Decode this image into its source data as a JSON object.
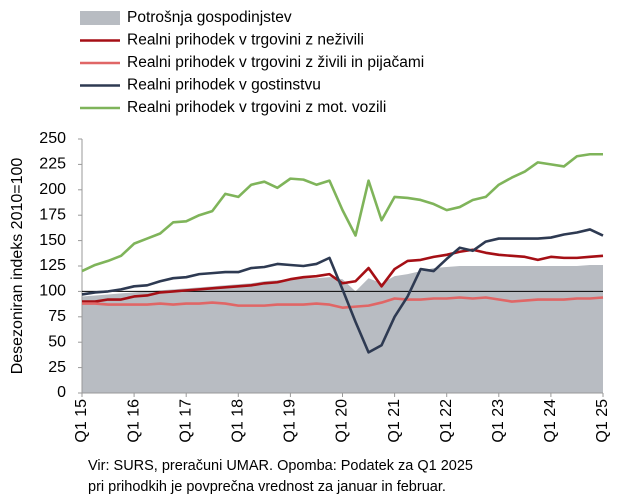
{
  "chart_data": {
    "type": "line",
    "y_label": "Desezoniran indeks 2010=100",
    "note": [
      "Vir: SURS, preračuni UMAR. Opomba: Podatek za Q1 2025",
      "pri prihodkih je povprečna vrednost za januar in februar."
    ],
    "categories": [
      "Q1 15",
      null,
      null,
      null,
      "Q1 16",
      null,
      null,
      null,
      "Q1 17",
      null,
      null,
      null,
      "Q1 18",
      null,
      null,
      null,
      "Q1 19",
      null,
      null,
      null,
      "Q1 20",
      null,
      null,
      null,
      "Q1 21",
      null,
      null,
      null,
      "Q1 22",
      null,
      null,
      null,
      "Q1 23",
      null,
      null,
      null,
      "Q1 24",
      null,
      null,
      null,
      "Q1 25"
    ],
    "ylim": [
      0,
      250
    ],
    "yticks": [
      0,
      25,
      50,
      75,
      100,
      125,
      150,
      175,
      200,
      225,
      250
    ],
    "reference_line": 100,
    "grid": false,
    "series": [
      {
        "name": "Potrošnja gospodinjstev",
        "kind": "area",
        "color": "#b8bcc2",
        "values": [
          95,
          96,
          97,
          98,
          99,
          100,
          101,
          102,
          103,
          104,
          105,
          106,
          107,
          108,
          110,
          111,
          112,
          113,
          113,
          114,
          112,
          100,
          113,
          108,
          115,
          117,
          120,
          123,
          124,
          125,
          125,
          125,
          125,
          125,
          125,
          125,
          125,
          125,
          125,
          126,
          126
        ]
      },
      {
        "name": "Realni prihodek v trgovini z neživili",
        "kind": "line",
        "color": "#a50f15",
        "values": [
          90,
          90,
          92,
          92,
          95,
          96,
          99,
          100,
          101,
          102,
          103,
          104,
          105,
          106,
          108,
          109,
          112,
          114,
          115,
          117,
          108,
          110,
          123,
          105,
          122,
          130,
          131,
          134,
          136,
          139,
          141,
          138,
          136,
          135,
          134,
          131,
          134,
          133,
          133,
          134,
          135
        ]
      },
      {
        "name": "Realni prihodek v trgovini z živili in pijačami",
        "kind": "line",
        "color": "#e06666",
        "values": [
          88,
          88,
          87,
          87,
          87,
          87,
          88,
          87,
          88,
          88,
          89,
          88,
          86,
          86,
          86,
          87,
          87,
          87,
          88,
          87,
          84,
          85,
          86,
          89,
          93,
          92,
          92,
          93,
          93,
          94,
          93,
          94,
          92,
          90,
          91,
          92,
          92,
          92,
          93,
          93,
          94
        ]
      },
      {
        "name": "Realni prihodek v gostinstvu",
        "kind": "line",
        "color": "#2e3a52",
        "values": [
          97,
          99,
          100,
          102,
          105,
          106,
          110,
          113,
          114,
          117,
          118,
          119,
          119,
          123,
          124,
          127,
          126,
          125,
          127,
          133,
          102,
          70,
          40,
          47,
          75,
          95,
          122,
          120,
          132,
          143,
          140,
          149,
          152,
          152,
          152,
          152,
          153,
          156,
          158,
          161,
          155
        ]
      },
      {
        "name": "Realni prihodek v trgovini z mot. vozili",
        "kind": "line",
        "color": "#7fb45a",
        "values": [
          120,
          126,
          130,
          135,
          147,
          152,
          157,
          168,
          169,
          175,
          179,
          196,
          193,
          205,
          208,
          202,
          211,
          210,
          205,
          209,
          180,
          155,
          209,
          170,
          193,
          192,
          190,
          186,
          180,
          183,
          190,
          193,
          205,
          212,
          218,
          227,
          225,
          223,
          233,
          235,
          235
        ]
      }
    ]
  }
}
